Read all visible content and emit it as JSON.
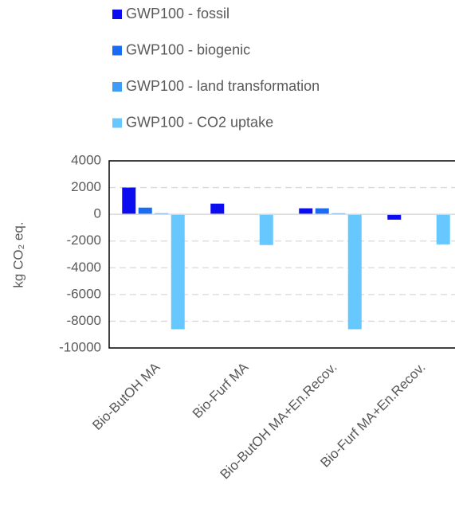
{
  "chart_data": {
    "type": "bar",
    "y_label": "kg CO₂ eq.",
    "categories": [
      "Bio-ButOH MA",
      "Bio-Furf MA",
      "Bio-ButOH MA+En.Recov.",
      "Bio-Furf MA+En.Recov."
    ],
    "series": [
      {
        "name": "GWP100 - fossil",
        "color": "#0c0cf0",
        "values": [
          2000,
          800,
          450,
          -400
        ]
      },
      {
        "name": "GWP100 - biogenic",
        "color": "#1a6cf2",
        "values": [
          500,
          0,
          450,
          0
        ]
      },
      {
        "name": "GWP100 - land transformation",
        "color": "#3d9cf5",
        "values": [
          80,
          0,
          80,
          0
        ]
      },
      {
        "name": "GWP100 - CO2 uptake",
        "color": "#66c8ff",
        "values": [
          -8600,
          -2300,
          -8600,
          -2250
        ]
      }
    ],
    "ylim": [
      -10000,
      4000
    ],
    "yticks": [
      -10000,
      -8000,
      -6000,
      -4000,
      -2000,
      0,
      2000,
      4000
    ],
    "grid": true
  }
}
